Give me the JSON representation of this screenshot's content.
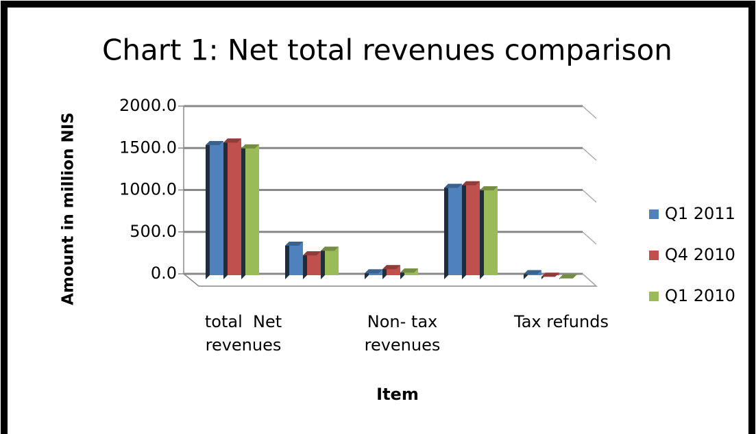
{
  "chart_data": {
    "type": "bar3d",
    "title": "Chart 1: Net total revenues comparison",
    "x_label": "Item",
    "y_label": "Amount in million NIS",
    "categories": [
      "total  Net revenues",
      null,
      "Non- tax revenues",
      null,
      "Tax refunds"
    ],
    "series": [
      {
        "name": "Q1 2011",
        "color": "#4f81bd",
        "values": [
          1600,
          400,
          70,
          1090,
          60
        ]
      },
      {
        "name": "Q4 2010",
        "color": "#c0504d",
        "values": [
          1630,
          285,
          120,
          1120,
          30
        ]
      },
      {
        "name": "Q1 2010",
        "color": "#9bbb59",
        "values": [
          1560,
          340,
          80,
          1060,
          10
        ]
      }
    ],
    "ylim": [
      0,
      2000
    ],
    "yticks": [
      {
        "value": 0,
        "label": "0.0"
      },
      {
        "value": 500,
        "label": "500.0"
      },
      {
        "value": 1000,
        "label": "1000.0"
      },
      {
        "value": 1500,
        "label": "1500.0"
      },
      {
        "value": 2000,
        "label": "2000.0"
      }
    ],
    "grid": true,
    "legend": "right"
  }
}
